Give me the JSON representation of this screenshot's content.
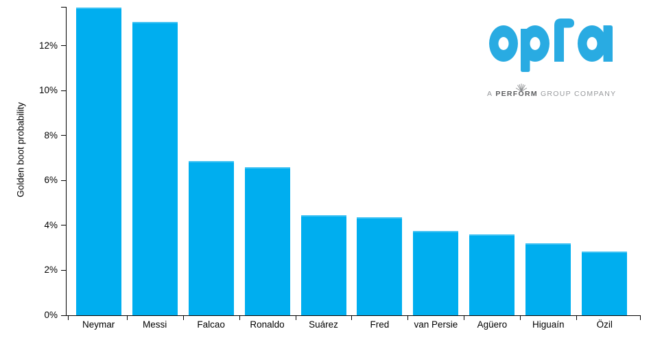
{
  "chart_data": {
    "type": "bar",
    "title": "",
    "xlabel": "",
    "ylabel": "Golden boot probability",
    "categories": [
      "Neymar",
      "Messi",
      "Falcao",
      "Ronaldo",
      "Suárez",
      "Fred",
      "van Persie",
      "Agüero",
      "Higuaín",
      "Özil"
    ],
    "values": [
      13.7,
      13.05,
      6.85,
      6.6,
      4.45,
      4.35,
      3.75,
      3.6,
      3.2,
      2.85
    ],
    "value_unit": "%",
    "y_ticks": [
      "0%",
      "2%",
      "4%",
      "6%",
      "8%",
      "10%",
      "12%"
    ],
    "y_tick_values": [
      0,
      2,
      4,
      6,
      8,
      10,
      12
    ],
    "ylim": [
      0,
      13.73
    ],
    "grid": false,
    "legend": null,
    "bar_color": "#00AEEF",
    "axis_color": "#000000"
  },
  "branding": {
    "logo_text": "opta",
    "logo_color": "#29ABE2",
    "tagline": {
      "prefix": "A",
      "bold_pre": "PERF",
      "bold_o": "O",
      "bold_post": "RM",
      "suffix": "GROUP COMPANY",
      "full_text": "A PERFORM GROUP COMPANY"
    },
    "tagline_color": "#97999C",
    "tagline_bold_color": "#5B5C5E"
  }
}
